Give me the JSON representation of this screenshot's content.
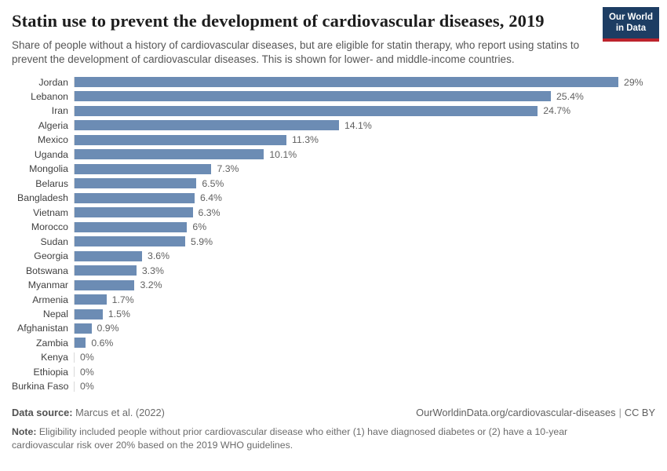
{
  "header": {
    "title": "Statin use to prevent the development of cardiovascular diseases, 2019",
    "subtitle": "Share of people without a history of cardiovascular diseases, but are eligible for statin therapy, who report using statins to prevent the development of cardiovascular diseases. This is shown for lower- and middle-income countries.",
    "logo": {
      "line1": "Our World",
      "line2": "in Data"
    }
  },
  "chart_data": {
    "type": "bar",
    "orientation": "horizontal",
    "title": "Statin use to prevent the development of cardiovascular diseases, 2019",
    "unit": "%",
    "xlim": [
      0,
      29
    ],
    "grid": false,
    "bar_color": "#6c8cb4",
    "categories": [
      "Jordan",
      "Lebanon",
      "Iran",
      "Algeria",
      "Mexico",
      "Uganda",
      "Mongolia",
      "Belarus",
      "Bangladesh",
      "Vietnam",
      "Morocco",
      "Sudan",
      "Georgia",
      "Botswana",
      "Myanmar",
      "Armenia",
      "Nepal",
      "Afghanistan",
      "Zambia",
      "Kenya",
      "Ethiopia",
      "Burkina Faso"
    ],
    "values": [
      29,
      25.4,
      24.7,
      14.1,
      11.3,
      10.1,
      7.3,
      6.5,
      6.4,
      6.3,
      6,
      5.9,
      3.6,
      3.3,
      3.2,
      1.7,
      1.5,
      0.9,
      0.6,
      0,
      0,
      0
    ],
    "value_labels": [
      "29%",
      "25.4%",
      "24.7%",
      "14.1%",
      "11.3%",
      "10.1%",
      "7.3%",
      "6.5%",
      "6.4%",
      "6.3%",
      "6%",
      "5.9%",
      "3.6%",
      "3.3%",
      "3.2%",
      "1.7%",
      "1.5%",
      "0.9%",
      "0.6%",
      "0%",
      "0%",
      "0%"
    ]
  },
  "footer": {
    "datasource_label": "Data source:",
    "datasource_value": " Marcus et al. (2022)",
    "link": "OurWorldinData.org/cardiovascular-diseases",
    "separator": "|",
    "license": "CC BY",
    "note_label": "Note:",
    "note_text": " Eligibility included people without prior cardiovascular disease who either (1) have diagnosed diabetes or (2) have a 10-year cardiovascular risk over 20% based on the 2019 WHO guidelines."
  },
  "colors": {
    "bar": "#6c8cb4",
    "axis_line": "#d9d9d9",
    "logo_background": "#1d3d63",
    "logo_accent": "#bc232c",
    "title_text": "#1d1d1d",
    "subtitle_text": "#565656"
  }
}
